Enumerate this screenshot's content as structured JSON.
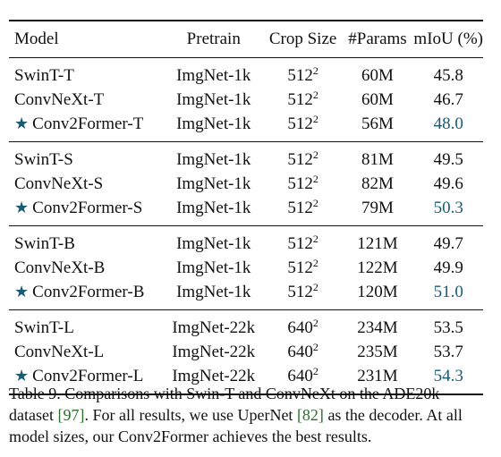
{
  "table": {
    "headers": {
      "model": "Model",
      "pretrain": "Pretrain",
      "crop": "Crop Size",
      "params": "#Params",
      "miou": "mIoU (%)"
    },
    "groups": [
      {
        "rows": [
          {
            "model": "SwinT-T",
            "pretrain": "ImgNet-1k",
            "crop_base": "512",
            "crop_exp": "2",
            "params": "60M",
            "miou": "45.8"
          },
          {
            "model": "ConvNeXt-T",
            "pretrain": "ImgNet-1k",
            "crop_base": "512",
            "crop_exp": "2",
            "params": "60M",
            "miou": "46.7"
          },
          {
            "model": "Conv2Former-T",
            "pretrain": "ImgNet-1k",
            "crop_base": "512",
            "crop_exp": "2",
            "params": "56M",
            "miou": "48.0"
          }
        ]
      },
      {
        "rows": [
          {
            "model": "SwinT-S",
            "pretrain": "ImgNet-1k",
            "crop_base": "512",
            "crop_exp": "2",
            "params": "81M",
            "miou": "49.5"
          },
          {
            "model": "ConvNeXt-S",
            "pretrain": "ImgNet-1k",
            "crop_base": "512",
            "crop_exp": "2",
            "params": "82M",
            "miou": "49.6"
          },
          {
            "model": "Conv2Former-S",
            "pretrain": "ImgNet-1k",
            "crop_base": "512",
            "crop_exp": "2",
            "params": "79M",
            "miou": "50.3"
          }
        ]
      },
      {
        "rows": [
          {
            "model": "SwinT-B",
            "pretrain": "ImgNet-1k",
            "crop_base": "512",
            "crop_exp": "2",
            "params": "121M",
            "miou": "49.7"
          },
          {
            "model": "ConvNeXt-B",
            "pretrain": "ImgNet-1k",
            "crop_base": "512",
            "crop_exp": "2",
            "params": "122M",
            "miou": "49.9"
          },
          {
            "model": "Conv2Former-B",
            "pretrain": "ImgNet-1k",
            "crop_base": "512",
            "crop_exp": "2",
            "params": "120M",
            "miou": "51.0"
          }
        ]
      },
      {
        "rows": [
          {
            "model": "SwinT-L",
            "pretrain": "ImgNet-22k",
            "crop_base": "640",
            "crop_exp": "2",
            "params": "234M",
            "miou": "53.5"
          },
          {
            "model": "ConvNeXt-L",
            "pretrain": "ImgNet-22k",
            "crop_base": "640",
            "crop_exp": "2",
            "params": "235M",
            "miou": "53.7"
          },
          {
            "model": "Conv2Former-L",
            "pretrain": "ImgNet-22k",
            "crop_base": "640",
            "crop_exp": "2",
            "params": "231M",
            "miou": "54.3"
          }
        ]
      }
    ],
    "star_glyph": "★",
    "highlight_color": "#1a5a77"
  },
  "caption": {
    "part1": "Table 9. Comparisons with Swin-T and ConvNeXt on the ADE20k dataset ",
    "ref1": "[97]",
    "part2": ". For all results, we use UperNet ",
    "ref2": "[82]",
    "part3": " as the decoder. At all model sizes, our Conv2Former achieves the best results."
  }
}
